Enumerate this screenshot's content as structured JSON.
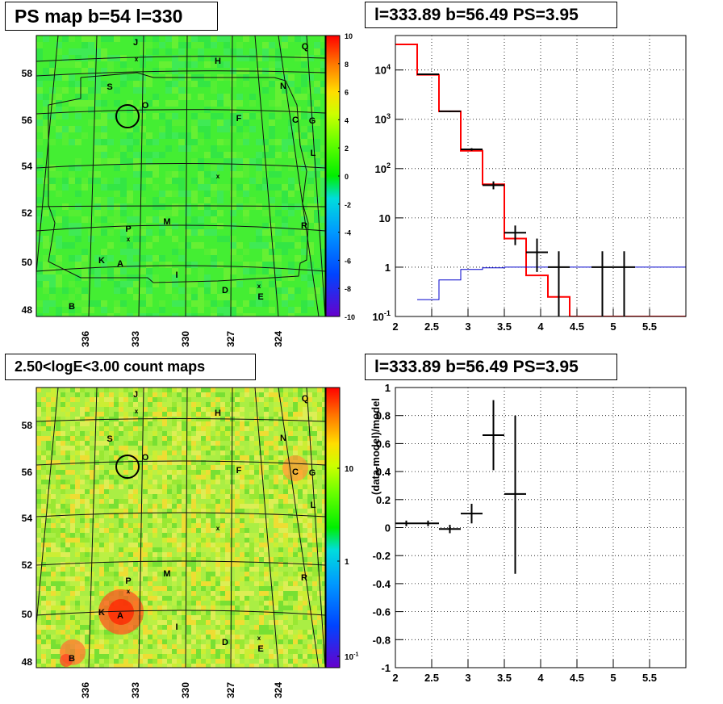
{
  "titles": {
    "ps_map": "PS map b=54 l=330",
    "spectrum": "l=333.89 b=56.49 PS=3.95",
    "count_map": "2.50<logE<3.00 count maps",
    "residual": "l=333.89 b=56.49 PS=3.95"
  },
  "sky_map": {
    "lat_labels": [
      "58",
      "56",
      "54",
      "52",
      "50",
      "48"
    ],
    "lon_labels": [
      "336",
      "333",
      "330",
      "327",
      "324"
    ],
    "source_labels": [
      "J",
      "Q",
      "H",
      "S",
      "N",
      "O",
      "F",
      "C",
      "G",
      "L",
      "M",
      "R",
      "P",
      "K",
      "A",
      "I",
      "D",
      "E",
      "B"
    ]
  },
  "chart_data": [
    {
      "type": "heatmap",
      "title": "PS map b=54 l=330",
      "colorbar": {
        "min": -10,
        "max": 10,
        "ticks": [
          "10",
          "8",
          "6",
          "4",
          "2",
          "0",
          "-2",
          "-4",
          "-6",
          "-8",
          "-10"
        ]
      },
      "marker": {
        "l": 333.89,
        "b": 56.49
      }
    },
    {
      "type": "line",
      "title": "l=333.89 b=56.49 PS=3.95",
      "x_scale": "linear",
      "y_scale": "log",
      "xlim": [
        2,
        6
      ],
      "ylim": [
        0.1,
        50000
      ],
      "x_ticks": [
        "2",
        "2.5",
        "3",
        "3.5",
        "4",
        "4.5",
        "5",
        "5.5"
      ],
      "y_ticks": [
        "10^-1",
        "1",
        "10",
        "10^2",
        "10^3",
        "10^4"
      ],
      "grid": true,
      "series": [
        {
          "style": "step",
          "color": "#ff0000",
          "edges": [
            2.0,
            2.3,
            2.6,
            2.9,
            3.2,
            3.5,
            3.8,
            4.1,
            4.4,
            6.0
          ],
          "values": [
            33000,
            8000,
            1450,
            230,
            48,
            3.8,
            0.68,
            0.25,
            0.1
          ]
        },
        {
          "style": "step",
          "color": "#0000cc",
          "edges": [
            2.3,
            2.6,
            2.9,
            3.2,
            3.5,
            3.8,
            6.0
          ],
          "values": [
            0.22,
            0.55,
            0.9,
            0.97,
            1.0,
            1.0
          ]
        },
        {
          "style": "errorbar",
          "color": "#000000",
          "points": [
            {
              "x": 2.45,
              "xerr": 0.15,
              "y": 8200,
              "ylo": 7900,
              "yhi": 8500
            },
            {
              "x": 2.75,
              "xerr": 0.15,
              "y": 1450,
              "ylo": 1400,
              "yhi": 1500
            },
            {
              "x": 3.05,
              "xerr": 0.15,
              "y": 245,
              "ylo": 230,
              "yhi": 260
            },
            {
              "x": 3.35,
              "xerr": 0.15,
              "y": 46,
              "ylo": 38,
              "yhi": 55
            },
            {
              "x": 3.65,
              "xerr": 0.15,
              "y": 5,
              "ylo": 2.8,
              "yhi": 7
            },
            {
              "x": 3.95,
              "xerr": 0.15,
              "y": 2,
              "ylo": 0.8,
              "yhi": 3.8
            },
            {
              "x": 4.25,
              "xerr": 0.15,
              "y": 1,
              "ylo": 0.1,
              "yhi": 2.1
            },
            {
              "x": 4.85,
              "xerr": 0.15,
              "y": 1,
              "ylo": 0.1,
              "yhi": 2.1
            },
            {
              "x": 5.15,
              "xerr": 0.15,
              "y": 1,
              "ylo": 0.1,
              "yhi": 2.1
            }
          ]
        }
      ]
    },
    {
      "type": "heatmap",
      "title": "2.50<logE<3.00 count maps",
      "colorbar": {
        "scale": "log",
        "ticks": [
          "10",
          "1",
          "10^-1"
        ]
      },
      "marker": {
        "l": 333.89,
        "b": 56.49
      }
    },
    {
      "type": "scatter",
      "title": "l=333.89 b=56.49 PS=3.95",
      "ylabel": "(data-model)/model",
      "xlim": [
        2,
        6
      ],
      "ylim": [
        -1,
        1
      ],
      "x_ticks": [
        "2",
        "2.5",
        "3",
        "3.5",
        "4",
        "4.5",
        "5",
        "5.5"
      ],
      "y_ticks": [
        "1",
        "0.8",
        "0.6",
        "0.4",
        "0.2",
        "0",
        "-0.2",
        "-0.4",
        "-0.6",
        "-0.8",
        "-1"
      ],
      "grid": true,
      "points": [
        {
          "x": 2.15,
          "xerr": 0.15,
          "y": 0.03,
          "ylo": 0.01,
          "yhi": 0.05
        },
        {
          "x": 2.45,
          "xerr": 0.15,
          "y": 0.03,
          "ylo": 0.01,
          "yhi": 0.05
        },
        {
          "x": 2.75,
          "xerr": 0.15,
          "y": -0.01,
          "ylo": -0.04,
          "yhi": 0.02
        },
        {
          "x": 3.05,
          "xerr": 0.15,
          "y": 0.1,
          "ylo": 0.03,
          "yhi": 0.17
        },
        {
          "x": 3.35,
          "xerr": 0.15,
          "y": 0.66,
          "ylo": 0.41,
          "yhi": 0.91
        },
        {
          "x": 3.65,
          "xerr": 0.15,
          "y": 0.24,
          "ylo": -0.33,
          "yhi": 0.8
        }
      ]
    }
  ]
}
